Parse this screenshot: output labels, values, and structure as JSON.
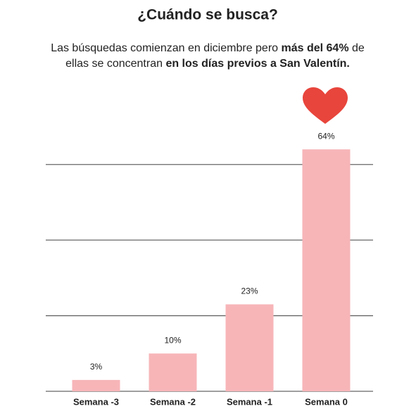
{
  "chart_data": {
    "type": "bar",
    "title": "¿Cuándo se busca?",
    "subtitle": [
      [
        {
          "text": "Las búsquedas comienzan en diciembre pero ",
          "bold": false
        },
        {
          "text": "más del 64%",
          "bold": true
        },
        {
          "text": " de",
          "bold": false
        }
      ],
      [
        {
          "text": "ellas se concentran ",
          "bold": false
        },
        {
          "text": "en los días previos a San Valentín.",
          "bold": true
        }
      ]
    ],
    "categories": [
      "Semana -3",
      "Semana -2",
      "Semana -1",
      "Semana 0"
    ],
    "values": [
      3,
      10,
      23,
      64
    ],
    "value_labels": [
      "3%",
      "10%",
      "23%",
      "64%"
    ],
    "color": "#f7b5b8",
    "label_color": "#f2a3a8",
    "ylim": [
      0,
      70
    ],
    "yticks": [
      0,
      20,
      40,
      60
    ],
    "grid": true
  }
}
